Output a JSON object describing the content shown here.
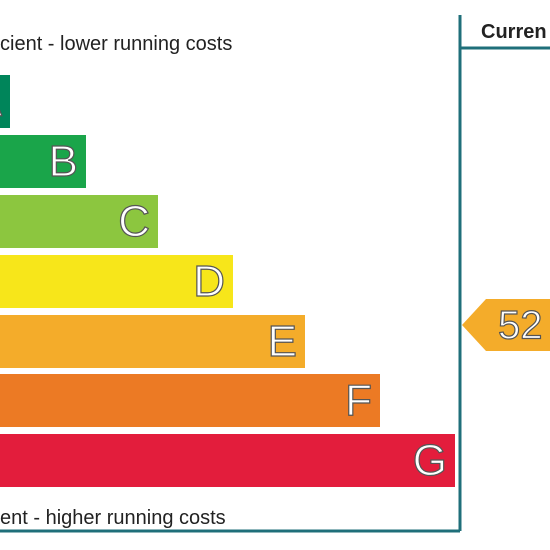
{
  "header": {
    "top_note": "cient - lower running costs",
    "bottom_note": "ent - higher running costs",
    "column_title": "Curren"
  },
  "bands": [
    {
      "letter": "A",
      "color": "#00855a"
    },
    {
      "letter": "B",
      "color": "#1aa54a"
    },
    {
      "letter": "C",
      "color": "#8cc63f"
    },
    {
      "letter": "D",
      "color": "#f7e61a"
    },
    {
      "letter": "E",
      "color": "#f4ac2a"
    },
    {
      "letter": "F",
      "color": "#ec7a24"
    },
    {
      "letter": "G",
      "color": "#e31d3c"
    }
  ],
  "current": {
    "value": 52,
    "color": "#f4ac2a"
  }
}
